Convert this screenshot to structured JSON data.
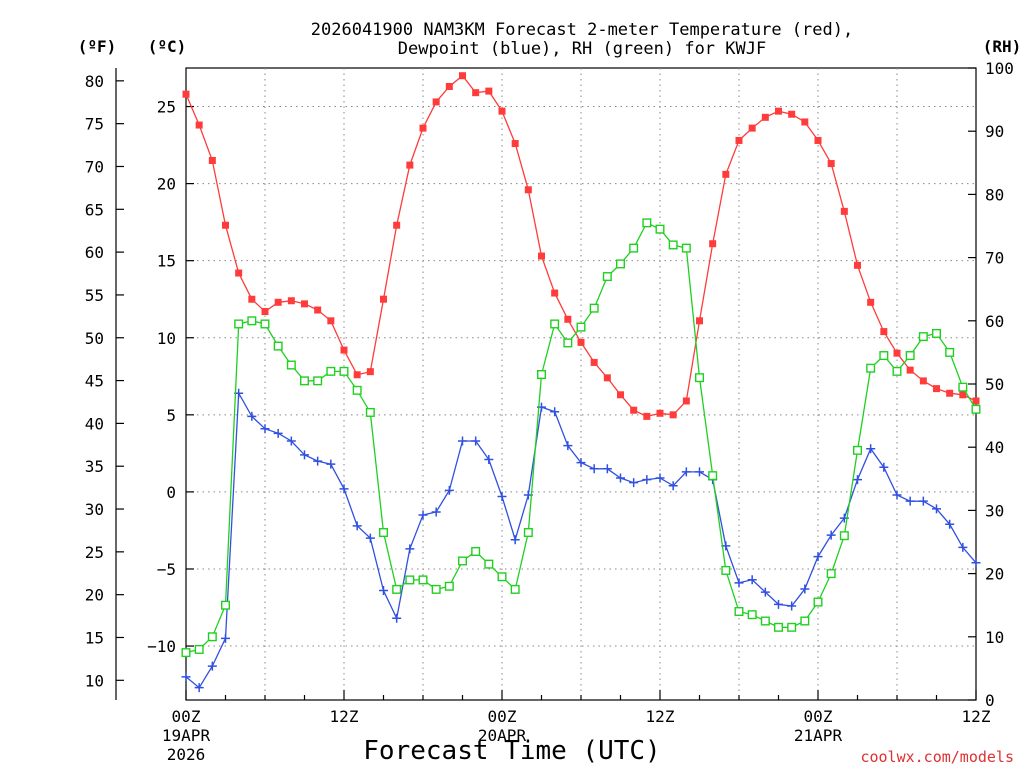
{
  "page": {
    "title_line1": "2026041900 NAM3KM Forecast 2-meter Temperature (red),",
    "title_line2": "Dewpoint (blue), RH (green) for KWJF",
    "credit": "coolwx.com/models"
  },
  "chart_data": {
    "type": "line",
    "title": "2026041900 NAM3KM Forecast 2-meter Temperature (red), Dewpoint (blue), RH (green) for KWJF",
    "xlabel": "Forecast Time (UTC)",
    "x_hours": [
      0,
      1,
      2,
      3,
      4,
      5,
      6,
      7,
      8,
      9,
      10,
      11,
      12,
      13,
      14,
      15,
      16,
      17,
      18,
      19,
      20,
      21,
      22,
      23,
      24,
      25,
      26,
      27,
      28,
      29,
      30,
      31,
      32,
      33,
      34,
      35,
      36,
      37,
      38,
      39,
      40,
      41,
      42,
      43,
      44,
      45,
      46,
      47,
      48,
      49,
      50,
      51,
      52,
      53,
      54,
      55,
      56,
      57,
      58,
      59,
      60
    ],
    "xlim": [
      0,
      60
    ],
    "x_ticks": [
      {
        "hour": 0,
        "label": "00Z",
        "sub1": "19APR",
        "sub2": "2026"
      },
      {
        "hour": 12,
        "label": "12Z",
        "sub1": "",
        "sub2": ""
      },
      {
        "hour": 24,
        "label": "00Z",
        "sub1": "20APR",
        "sub2": ""
      },
      {
        "hour": 36,
        "label": "12Z",
        "sub1": "",
        "sub2": ""
      },
      {
        "hour": 48,
        "label": "00Z",
        "sub1": "21APR",
        "sub2": ""
      },
      {
        "hour": 60,
        "label": "12Z",
        "sub1": "",
        "sub2": ""
      }
    ],
    "y_left_c": {
      "unit": "(ºC)",
      "ylim": [
        -13.5,
        27.5
      ],
      "ticks": [
        -10,
        -5,
        0,
        5,
        10,
        15,
        20,
        25
      ]
    },
    "y_left_f": {
      "unit": "(ºF)",
      "ticks": [
        10,
        15,
        20,
        25,
        30,
        35,
        40,
        45,
        50,
        55,
        60,
        65,
        70,
        75,
        80
      ]
    },
    "y_right_rh": {
      "unit": "(RH)",
      "ylim": [
        0,
        100
      ],
      "ticks": [
        0,
        10,
        20,
        30,
        40,
        50,
        60,
        70,
        80,
        90,
        100
      ]
    },
    "series": [
      {
        "name": "Temperature",
        "axis": "celsius",
        "color": "#ff3b3b",
        "marker": "filled-square",
        "values": [
          25.8,
          23.8,
          21.5,
          17.3,
          14.2,
          12.5,
          11.7,
          12.3,
          12.4,
          12.2,
          11.8,
          11.1,
          9.2,
          7.6,
          7.8,
          12.5,
          17.3,
          21.2,
          23.6,
          25.3,
          26.3,
          27.0,
          25.9,
          26.0,
          24.7,
          22.6,
          19.6,
          15.3,
          12.9,
          11.2,
          9.7,
          8.4,
          7.4,
          6.3,
          5.3,
          4.9,
          5.1,
          5.0,
          5.9,
          11.1,
          16.1,
          20.6,
          22.8,
          23.6,
          24.3,
          24.7,
          24.5,
          24.0,
          22.8,
          21.3,
          18.2,
          14.7,
          12.3,
          10.4,
          9.0,
          7.9,
          7.2,
          6.7,
          6.4,
          6.3,
          5.9
        ]
      },
      {
        "name": "Dewpoint",
        "axis": "celsius",
        "color": "#3050e0",
        "marker": "plus",
        "values": [
          -12.0,
          -12.7,
          -11.3,
          -9.5,
          6.4,
          4.9,
          4.1,
          3.8,
          3.3,
          2.4,
          2.0,
          1.8,
          0.2,
          -2.2,
          -3.0,
          -6.4,
          -8.2,
          -3.7,
          -1.5,
          -1.3,
          0.1,
          3.3,
          3.3,
          2.1,
          -0.3,
          -3.1,
          -0.2,
          5.5,
          5.2,
          3.0,
          1.9,
          1.5,
          1.5,
          0.9,
          0.6,
          0.8,
          0.9,
          0.4,
          1.3,
          1.3,
          0.8,
          -3.5,
          -5.9,
          -5.7,
          -6.5,
          -7.3,
          -7.4,
          -6.3,
          -4.2,
          -2.8,
          -1.7,
          0.8,
          2.8,
          1.6,
          -0.2,
          -0.6,
          -0.6,
          -1.1,
          -2.1,
          -3.6,
          -4.6
        ]
      },
      {
        "name": "RH",
        "axis": "rh",
        "color": "#20d020",
        "marker": "open-square",
        "values": [
          7.5,
          8.0,
          10.0,
          15.0,
          59.5,
          60.0,
          59.5,
          56.0,
          53.0,
          50.5,
          50.5,
          52.0,
          52.0,
          49.0,
          45.5,
          26.5,
          17.5,
          19.0,
          19.0,
          17.5,
          18.0,
          22.0,
          23.5,
          21.5,
          19.5,
          17.5,
          26.5,
          51.5,
          59.5,
          56.5,
          59.0,
          62.0,
          67.0,
          69.0,
          71.5,
          75.5,
          74.5,
          72.0,
          71.5,
          51.0,
          35.5,
          20.5,
          14.0,
          13.5,
          12.5,
          11.5,
          11.5,
          12.5,
          15.5,
          20.0,
          26.0,
          39.5,
          52.5,
          54.5,
          52.0,
          54.5,
          57.5,
          58.0,
          55.0,
          49.5,
          46.0
        ]
      }
    ],
    "grid": true,
    "legend": "none (series identified in title)"
  }
}
